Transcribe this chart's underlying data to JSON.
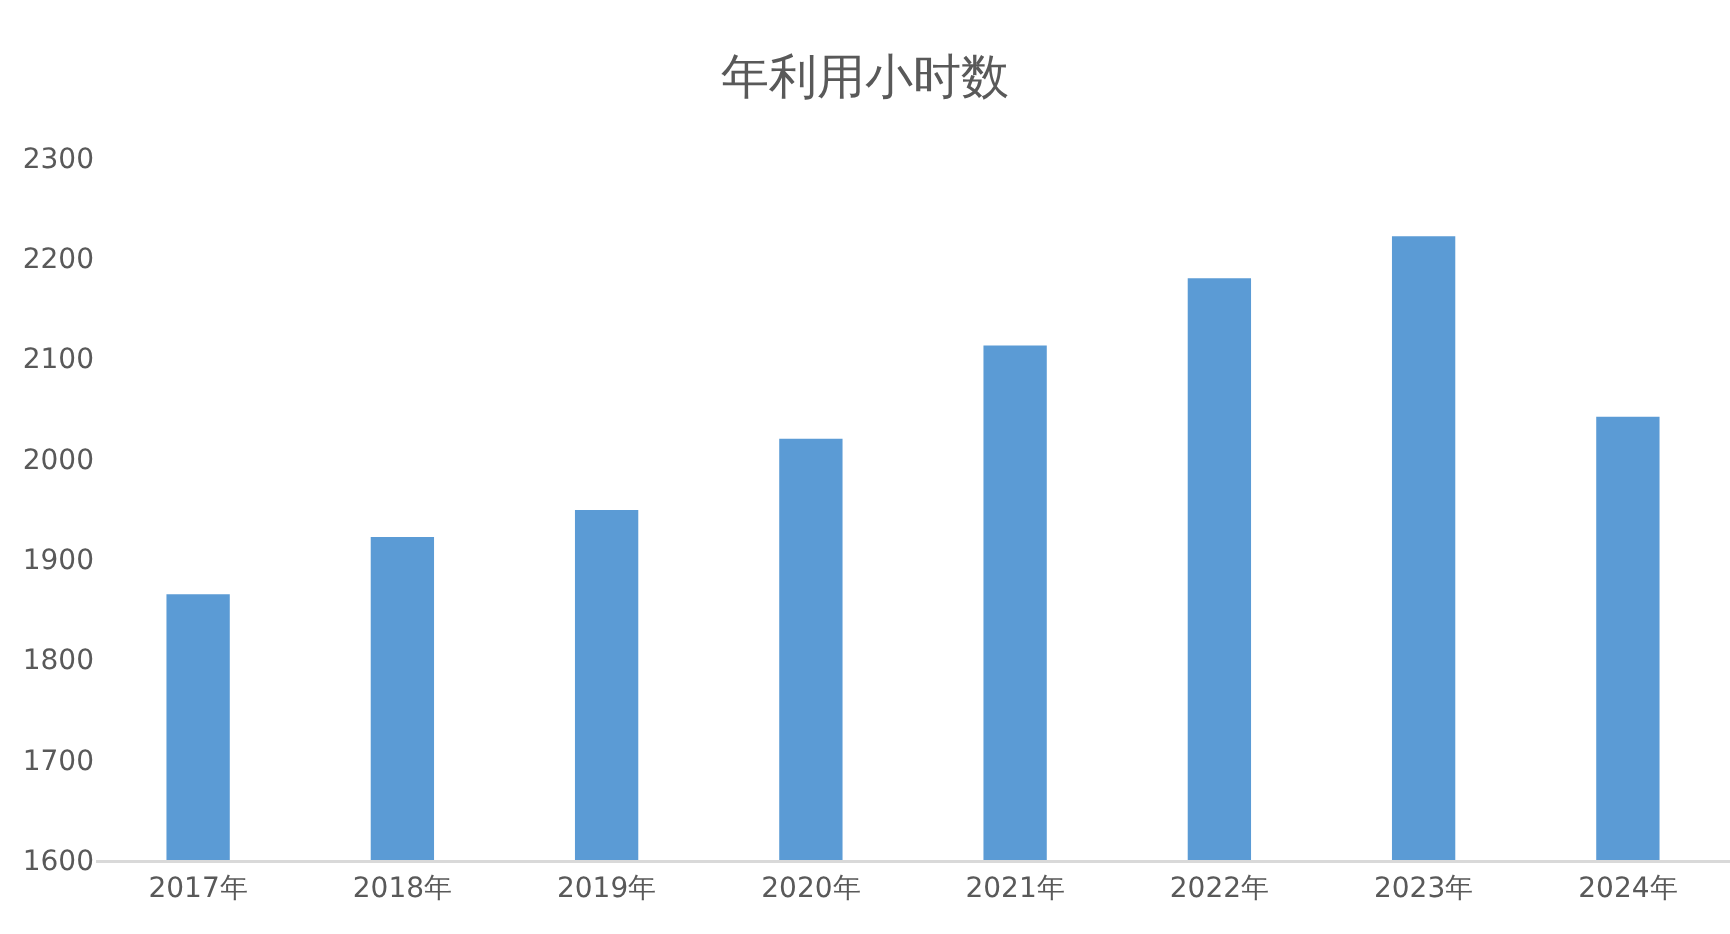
{
  "chart_data": {
    "type": "bar",
    "title": "年利用小时数",
    "categories": [
      "2017年",
      "2018年",
      "2019年",
      "2020年",
      "2021年",
      "2022年",
      "2023年",
      "2024年"
    ],
    "values": [
      1865,
      1922,
      1949,
      2020,
      2113,
      2180,
      2222,
      2042
    ],
    "color": "#5b9bd5",
    "ylim": [
      1600,
      2300
    ],
    "yticks": [
      1600,
      1700,
      1800,
      1900,
      2000,
      2100,
      2200,
      2300
    ]
  }
}
